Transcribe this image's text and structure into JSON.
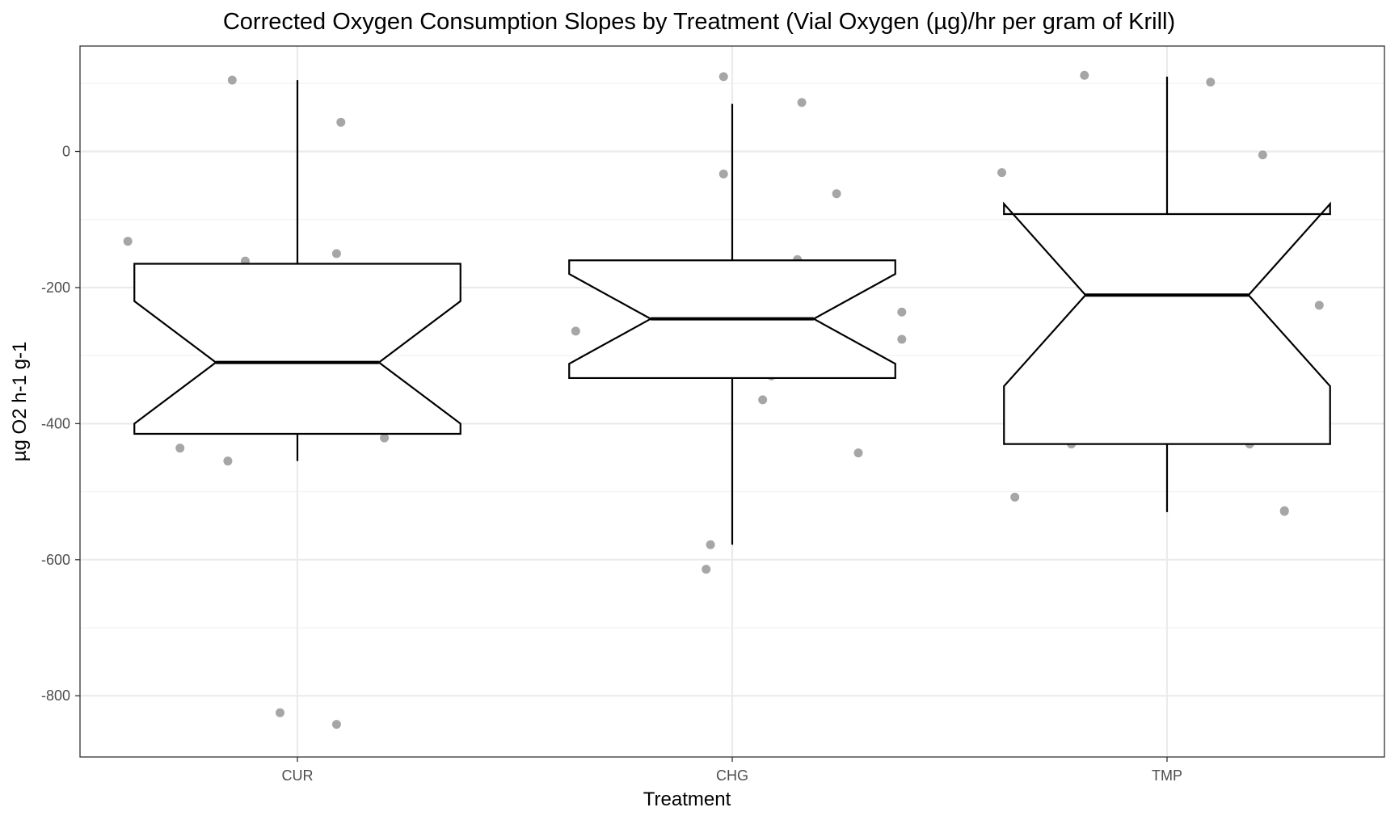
{
  "chart_data": {
    "type": "box",
    "title": "Corrected Oxygen Consumption Slopes by Treatment (Vial Oxygen (µg)/hr per gram of Krill)",
    "xlabel": "Treatment",
    "ylabel": "µg O2 h-1 g-1",
    "ylim": [
      -890,
      155
    ],
    "yticks": [
      0,
      -200,
      -400,
      -600,
      -800
    ],
    "ytick_labels": [
      "0",
      "-200",
      "-400",
      "-600",
      "-800"
    ],
    "categories": [
      "CUR",
      "CHG",
      "TMP"
    ],
    "notched": true,
    "grid": true,
    "boxes": [
      {
        "category": "CUR",
        "whisker_low": -455,
        "q1": -415,
        "notch_low": -400,
        "median": -310,
        "notch_high": -220,
        "q3": -165,
        "whisker_high": 105
      },
      {
        "category": "CHG",
        "whisker_low": -578,
        "q1": -333,
        "notch_low": -312,
        "median": -246,
        "notch_high": -180,
        "q3": -160,
        "whisker_high": 70
      },
      {
        "category": "TMP",
        "whisker_low": -530,
        "q1": -430,
        "notch_low": -345,
        "median": -211,
        "notch_high": -77,
        "q3": -92,
        "whisker_high": 110
      }
    ],
    "points": [
      {
        "category": "CUR",
        "jitter": -0.39,
        "y": -132
      },
      {
        "category": "CUR",
        "jitter": -0.15,
        "y": 105
      },
      {
        "category": "CUR",
        "jitter": 0.1,
        "y": 43
      },
      {
        "category": "CUR",
        "jitter": -0.12,
        "y": -161
      },
      {
        "category": "CUR",
        "jitter": 0.09,
        "y": -150
      },
      {
        "category": "CUR",
        "jitter": -0.27,
        "y": -436
      },
      {
        "category": "CUR",
        "jitter": -0.16,
        "y": -455
      },
      {
        "category": "CUR",
        "jitter": 0.2,
        "y": -421
      },
      {
        "category": "CUR",
        "jitter": -0.04,
        "y": -825
      },
      {
        "category": "CUR",
        "jitter": 0.09,
        "y": -842
      },
      {
        "category": "CHG",
        "jitter": -0.02,
        "y": 110
      },
      {
        "category": "CHG",
        "jitter": 0.16,
        "y": 72
      },
      {
        "category": "CHG",
        "jitter": -0.02,
        "y": -33
      },
      {
        "category": "CHG",
        "jitter": 0.24,
        "y": -62
      },
      {
        "category": "CHG",
        "jitter": 0.15,
        "y": -159
      },
      {
        "category": "CHG",
        "jitter": -0.36,
        "y": -264
      },
      {
        "category": "CHG",
        "jitter": 0.39,
        "y": -236
      },
      {
        "category": "CHG",
        "jitter": 0.39,
        "y": -276
      },
      {
        "category": "CHG",
        "jitter": 0.09,
        "y": -330
      },
      {
        "category": "CHG",
        "jitter": 0.07,
        "y": -365
      },
      {
        "category": "CHG",
        "jitter": 0.29,
        "y": -443
      },
      {
        "category": "CHG",
        "jitter": -0.05,
        "y": -578
      },
      {
        "category": "CHG",
        "jitter": -0.06,
        "y": -614
      },
      {
        "category": "TMP",
        "jitter": -0.19,
        "y": 112
      },
      {
        "category": "TMP",
        "jitter": 0.1,
        "y": 102
      },
      {
        "category": "TMP",
        "jitter": 0.22,
        "y": -5
      },
      {
        "category": "TMP",
        "jitter": -0.38,
        "y": -31
      },
      {
        "category": "TMP",
        "jitter": 0.35,
        "y": -226
      },
      {
        "category": "TMP",
        "jitter": -0.22,
        "y": -430
      },
      {
        "category": "TMP",
        "jitter": 0.19,
        "y": -430
      },
      {
        "category": "TMP",
        "jitter": -0.35,
        "y": -508
      },
      {
        "category": "TMP",
        "jitter": 0.27,
        "y": -528
      },
      {
        "category": "TMP",
        "jitter": 0.27,
        "y": -529
      }
    ],
    "colors": {
      "points": "#a6a6a6",
      "box": "#000000",
      "grid": "#ebebeb",
      "background": "#ffffff"
    }
  }
}
